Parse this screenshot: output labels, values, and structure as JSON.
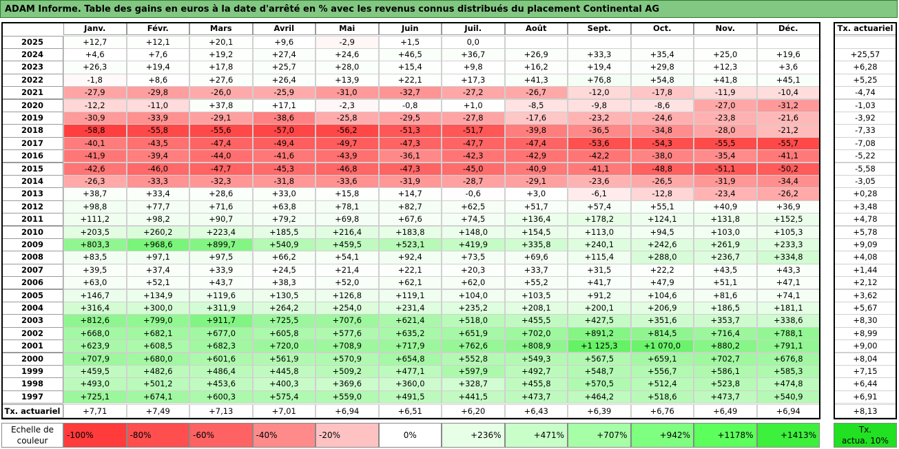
{
  "title": "ADAM Informe. Table des gains en euros à la date d'arrêté en % avec les revenus connus distribués du placement Continental AG",
  "months": [
    "Janv.",
    "Févr.",
    "Mars",
    "Avril",
    "Mai",
    "Juin",
    "Juil.",
    "Août",
    "Sept.",
    "Oct.",
    "Nov.",
    "Déc."
  ],
  "tx_header": "Tx. actuariel",
  "rows": [
    {
      "year": "2025",
      "cells": [
        "+12,7",
        "+12,1",
        "+20,1",
        "+9,6",
        "-2,9",
        "+1,5",
        "0,0",
        "",
        "",
        "",
        "",
        ""
      ],
      "tx": ""
    },
    {
      "year": "2024",
      "cells": [
        "+4,6",
        "+7,6",
        "+19,2",
        "+27,4",
        "+24,6",
        "+46,5",
        "+36,7",
        "+26,9",
        "+33,3",
        "+35,4",
        "+25,0",
        "+19,6"
      ],
      "tx": "+25,57"
    },
    {
      "year": "2023",
      "cells": [
        "+26,3",
        "+19,4",
        "+17,8",
        "+25,7",
        "+28,0",
        "+15,4",
        "+9,8",
        "+16,2",
        "+19,4",
        "+29,8",
        "+12,3",
        "+3,6"
      ],
      "tx": "+6,28"
    },
    {
      "year": "2022",
      "cells": [
        "-1,8",
        "+8,6",
        "+27,6",
        "+26,4",
        "+13,9",
        "+22,1",
        "+17,3",
        "+41,3",
        "+76,8",
        "+54,8",
        "+41,8",
        "+45,1"
      ],
      "tx": "+5,25"
    },
    {
      "year": "2021",
      "cells": [
        "-27,9",
        "-29,8",
        "-26,0",
        "-25,9",
        "-31,0",
        "-32,7",
        "-27,2",
        "-26,7",
        "-12,0",
        "-17,8",
        "-11,9",
        "-10,4"
      ],
      "tx": "-4,74"
    },
    {
      "year": "2020",
      "cells": [
        "-12,2",
        "-11,0",
        "+37,8",
        "+17,1",
        "-2,3",
        "-0,8",
        "+1,0",
        "-8,5",
        "-9,8",
        "-8,6",
        "-27,0",
        "-31,2"
      ],
      "tx": "-1,03"
    },
    {
      "year": "2019",
      "cells": [
        "-30,9",
        "-33,9",
        "-29,1",
        "-38,6",
        "-25,8",
        "-29,5",
        "-27,8",
        "-17,6",
        "-23,2",
        "-24,6",
        "-23,8",
        "-21,6"
      ],
      "tx": "-3,92"
    },
    {
      "year": "2018",
      "cells": [
        "-58,8",
        "-55,8",
        "-55,6",
        "-57,0",
        "-56,2",
        "-51,3",
        "-51,7",
        "-39,8",
        "-36,5",
        "-34,8",
        "-28,0",
        "-21,2"
      ],
      "tx": "-7,33"
    },
    {
      "year": "2017",
      "cells": [
        "-40,1",
        "-43,5",
        "-47,4",
        "-49,4",
        "-49,7",
        "-47,3",
        "-47,7",
        "-47,4",
        "-53,6",
        "-54,3",
        "-55,5",
        "-55,7"
      ],
      "tx": "-7,08"
    },
    {
      "year": "2016",
      "cells": [
        "-41,9",
        "-39,4",
        "-44,0",
        "-41,6",
        "-43,9",
        "-36,1",
        "-42,3",
        "-42,9",
        "-42,2",
        "-38,0",
        "-35,4",
        "-41,1"
      ],
      "tx": "-5,22"
    },
    {
      "year": "2015",
      "cells": [
        "-42,6",
        "-46,0",
        "-47,7",
        "-45,3",
        "-46,8",
        "-47,3",
        "-45,0",
        "-40,9",
        "-41,1",
        "-48,8",
        "-51,1",
        "-50,2"
      ],
      "tx": "-5,58"
    },
    {
      "year": "2014",
      "cells": [
        "-26,3",
        "-33,3",
        "-32,3",
        "-31,8",
        "-33,6",
        "-31,9",
        "-28,7",
        "-29,1",
        "-23,6",
        "-26,5",
        "-31,9",
        "-34,4"
      ],
      "tx": "-3,05"
    },
    {
      "year": "2013",
      "cells": [
        "+38,7",
        "+33,4",
        "+28,6",
        "+33,0",
        "+15,8",
        "+14,7",
        "-0,6",
        "+3,0",
        "-6,1",
        "-12,8",
        "-23,4",
        "-26,2"
      ],
      "tx": "+0,28"
    },
    {
      "year": "2012",
      "cells": [
        "+98,8",
        "+77,7",
        "+71,6",
        "+63,8",
        "+78,1",
        "+82,7",
        "+62,5",
        "+51,7",
        "+57,4",
        "+55,1",
        "+40,9",
        "+36,9"
      ],
      "tx": "+3,48"
    },
    {
      "year": "2011",
      "cells": [
        "+111,2",
        "+98,2",
        "+90,7",
        "+79,2",
        "+69,8",
        "+67,6",
        "+74,5",
        "+136,4",
        "+178,2",
        "+124,1",
        "+131,8",
        "+152,5"
      ],
      "tx": "+4,78"
    },
    {
      "year": "2010",
      "cells": [
        "+203,5",
        "+260,2",
        "+223,4",
        "+185,5",
        "+216,4",
        "+183,8",
        "+148,0",
        "+154,5",
        "+113,0",
        "+94,5",
        "+103,0",
        "+105,3"
      ],
      "tx": "+5,78"
    },
    {
      "year": "2009",
      "cells": [
        "+803,3",
        "+968,6",
        "+899,7",
        "+540,9",
        "+459,5",
        "+523,1",
        "+419,9",
        "+335,8",
        "+240,1",
        "+242,6",
        "+261,9",
        "+233,3"
      ],
      "tx": "+9,09"
    },
    {
      "year": "2008",
      "cells": [
        "+83,5",
        "+97,1",
        "+97,5",
        "+66,2",
        "+54,1",
        "+92,4",
        "+73,5",
        "+69,6",
        "+115,4",
        "+288,0",
        "+236,7",
        "+334,8"
      ],
      "tx": "+4,08"
    },
    {
      "year": "2007",
      "cells": [
        "+39,5",
        "+37,4",
        "+33,9",
        "+24,5",
        "+21,4",
        "+22,1",
        "+20,3",
        "+33,7",
        "+31,5",
        "+22,2",
        "+43,5",
        "+43,3"
      ],
      "tx": "+1,44"
    },
    {
      "year": "2006",
      "cells": [
        "+63,0",
        "+52,1",
        "+43,7",
        "+38,3",
        "+52,0",
        "+62,1",
        "+62,0",
        "+55,2",
        "+41,7",
        "+47,9",
        "+51,1",
        "+47,1"
      ],
      "tx": "+2,12"
    },
    {
      "year": "2005",
      "cells": [
        "+146,7",
        "+134,9",
        "+119,6",
        "+130,5",
        "+126,8",
        "+119,1",
        "+104,0",
        "+103,5",
        "+91,2",
        "+104,6",
        "+81,6",
        "+74,1"
      ],
      "tx": "+3,62"
    },
    {
      "year": "2004",
      "cells": [
        "+316,4",
        "+300,0",
        "+311,9",
        "+264,2",
        "+254,0",
        "+231,4",
        "+235,2",
        "+208,1",
        "+200,1",
        "+206,9",
        "+186,5",
        "+181,1"
      ],
      "tx": "+5,67"
    },
    {
      "year": "2003",
      "cells": [
        "+812,6",
        "+799,0",
        "+911,7",
        "+725,5",
        "+707,6",
        "+621,4",
        "+518,0",
        "+455,5",
        "+427,5",
        "+351,6",
        "+353,7",
        "+338,6"
      ],
      "tx": "+8,30"
    },
    {
      "year": "2002",
      "cells": [
        "+668,0",
        "+682,1",
        "+677,0",
        "+605,8",
        "+577,6",
        "+635,2",
        "+651,9",
        "+702,0",
        "+891,2",
        "+814,5",
        "+716,4",
        "+788,1"
      ],
      "tx": "+8,99"
    },
    {
      "year": "2001",
      "cells": [
        "+623,9",
        "+608,5",
        "+682,3",
        "+720,0",
        "+708,9",
        "+717,9",
        "+762,6",
        "+808,9",
        "+1 125,3",
        "+1 070,0",
        "+880,2",
        "+791,1"
      ],
      "tx": "+9,00"
    },
    {
      "year": "2000",
      "cells": [
        "+707,9",
        "+680,0",
        "+601,6",
        "+561,9",
        "+570,9",
        "+654,8",
        "+552,8",
        "+549,3",
        "+567,5",
        "+659,1",
        "+702,7",
        "+676,8"
      ],
      "tx": "+8,04"
    },
    {
      "year": "1999",
      "cells": [
        "+459,5",
        "+482,6",
        "+486,4",
        "+445,8",
        "+509,2",
        "+477,1",
        "+597,9",
        "+492,7",
        "+548,7",
        "+556,7",
        "+586,1",
        "+585,3"
      ],
      "tx": "+7,15"
    },
    {
      "year": "1998",
      "cells": [
        "+493,0",
        "+501,2",
        "+453,6",
        "+400,3",
        "+369,6",
        "+360,0",
        "+328,7",
        "+455,8",
        "+570,5",
        "+512,4",
        "+523,8",
        "+474,8"
      ],
      "tx": "+6,44"
    },
    {
      "year": "1997",
      "cells": [
        "+725,1",
        "+674,1",
        "+600,3",
        "+575,4",
        "+559,0",
        "+491,5",
        "+441,5",
        "+473,7",
        "+464,2",
        "+518,6",
        "+473,7",
        "+540,9"
      ],
      "tx": "+6,91"
    }
  ],
  "footer": {
    "label": "Tx. actuariel",
    "cells": [
      "+7,71",
      "+7,49",
      "+7,13",
      "+7,01",
      "+6,94",
      "+6,51",
      "+6,20",
      "+6,43",
      "+6,39",
      "+6,76",
      "+6,49",
      "+6,94"
    ],
    "tx": "+8,13"
  },
  "legend": {
    "label_line1": "Echelle de",
    "label_line2": "couleur",
    "items": [
      {
        "text": "-100%",
        "color": "#ff3b3b",
        "align": "left"
      },
      {
        "text": "-80%",
        "color": "#ff4e4e",
        "align": "left"
      },
      {
        "text": "-60%",
        "color": "#ff6262",
        "align": "left"
      },
      {
        "text": "-40%",
        "color": "#ff8a8a",
        "align": "left"
      },
      {
        "text": "-20%",
        "color": "#ffc2c2",
        "align": "left"
      },
      {
        "text": "0%",
        "color": "#ffffff",
        "align": "center"
      },
      {
        "text": "+236%",
        "color": "#e6ffe6",
        "align": "right"
      },
      {
        "text": "+471%",
        "color": "#c8ffc8",
        "align": "right"
      },
      {
        "text": "+707%",
        "color": "#a6ffa6",
        "align": "right"
      },
      {
        "text": "+942%",
        "color": "#7fff7f",
        "align": "right"
      },
      {
        "text": "+1178%",
        "color": "#5cff5c",
        "align": "right"
      },
      {
        "text": "+1413%",
        "color": "#3cf03c",
        "align": "right"
      }
    ],
    "tx_line1": "Tx.",
    "tx_line2": "actua. 10%",
    "tx_color": "#22e022"
  }
}
